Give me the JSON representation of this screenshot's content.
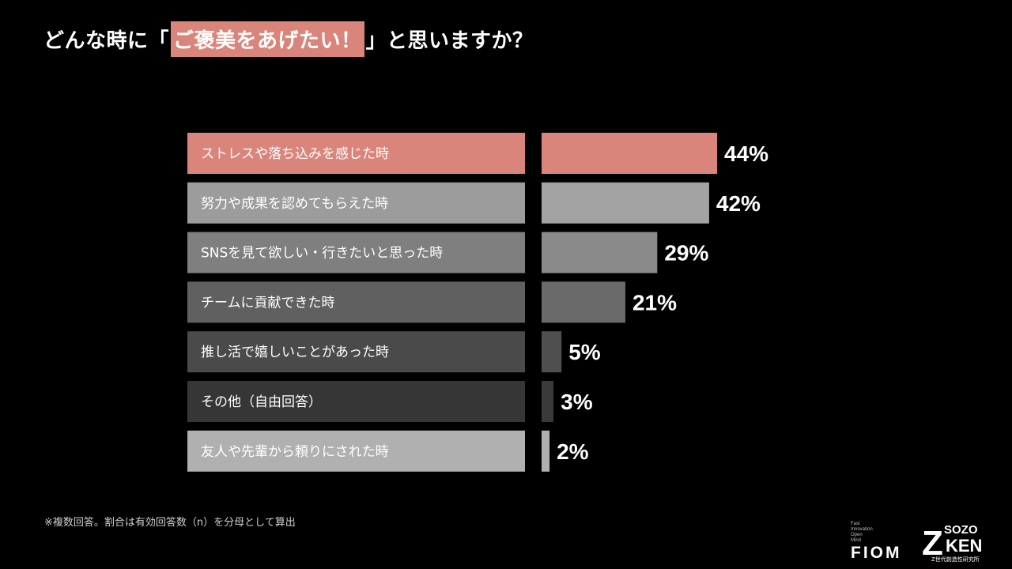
{
  "header": {
    "title_prefix": "どんな時に「",
    "title_highlight": "ご褒美をあげたい！",
    "title_suffix": "」と思いますか？"
  },
  "chart_data": {
    "type": "bar",
    "orientation": "horizontal",
    "categories": [
      "ストレスや落ち込みを感じた時",
      "努力や成果を認めてもらえた時",
      "SNSを見て欲しい・行きたいと思った時",
      "チームに貢献できた時",
      "推し活で嬉しいことがあった時",
      "その他（自由回答）",
      "友人や先輩から頼りにされた時"
    ],
    "values": [
      44,
      42,
      29,
      21,
      5,
      3,
      2
    ],
    "value_labels": [
      "44%",
      "42%",
      "29%",
      "21%",
      "5%",
      "3%",
      "2%"
    ],
    "unit": "%",
    "xlim": [
      0,
      44
    ],
    "grid": false,
    "legend": "none",
    "colors": {
      "highlight": "#d9857b",
      "label_boxes": [
        "#d9857b",
        "#9c9c9c",
        "#7f7f7f",
        "#606060",
        "#4a4a4a",
        "#363636",
        "#b0b0b0"
      ],
      "bars": [
        "#d9857b",
        "#a3a3a3",
        "#8a8a8a",
        "#6a6a6a",
        "#4f4f4f",
        "#3a3a3a",
        "#b0b0b0"
      ]
    }
  },
  "footnote": "※複数回答。割合は有効回答数（n）を分母として算出",
  "logos": {
    "fiom_tagline": [
      "Fast",
      "Innovation",
      "Open",
      "Mind"
    ],
    "fiom_name": "FIOM",
    "zken_letter": "Z",
    "zken_top": "SOZO",
    "zken_bottom": "KEN",
    "zken_caption": "Z世代創造性研究所"
  }
}
